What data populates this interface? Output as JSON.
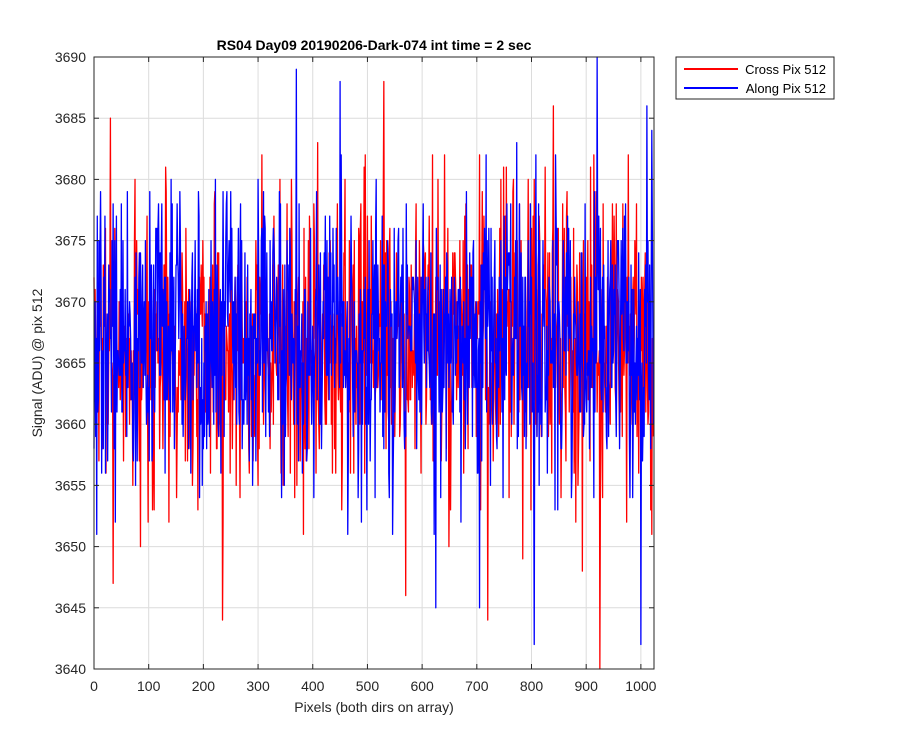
{
  "chart_data": {
    "type": "line",
    "title": "RS04 Day09 20190206-Dark-074 int time = 2 sec",
    "xlabel": "Pixels (both dirs on array)",
    "ylabel": "Signal (ADU) @ pix 512",
    "xlim": [
      0,
      1024
    ],
    "ylim": [
      3640,
      3690
    ],
    "xticks": [
      "0",
      "100",
      "200",
      "300",
      "400",
      "500",
      "600",
      "700",
      "800",
      "900",
      "1000"
    ],
    "yticks": [
      "3640",
      "3645",
      "3650",
      "3655",
      "3660",
      "3665",
      "3670",
      "3675",
      "3680",
      "3685",
      "3690"
    ],
    "grid": true,
    "legend_position": "outside-top-right",
    "x": {
      "start": 0,
      "end": 1023,
      "step": 1
    },
    "series": [
      {
        "name": "Cross Pix 512",
        "color": "#ff0000",
        "mean": 3666.5,
        "std": 6.0,
        "seed": 7,
        "highlights": [
          [
            30,
            3685
          ],
          [
            35,
            3647
          ],
          [
            85,
            3650
          ],
          [
            235,
            3644
          ],
          [
            530,
            3688
          ],
          [
            570,
            3646
          ],
          [
            720,
            3644
          ],
          [
            840,
            3686
          ],
          [
            925,
            3640
          ],
          [
            1020,
            3651
          ]
        ]
      },
      {
        "name": "Along Pix 512",
        "color": "#0000ff",
        "mean": 3667.0,
        "std": 6.0,
        "seed": 13,
        "highlights": [
          [
            5,
            3651
          ],
          [
            370,
            3689
          ],
          [
            450,
            3688
          ],
          [
            625,
            3645
          ],
          [
            705,
            3645
          ],
          [
            805,
            3642
          ],
          [
            920,
            3690
          ],
          [
            1000,
            3642
          ],
          [
            1020,
            3684
          ]
        ]
      }
    ]
  }
}
